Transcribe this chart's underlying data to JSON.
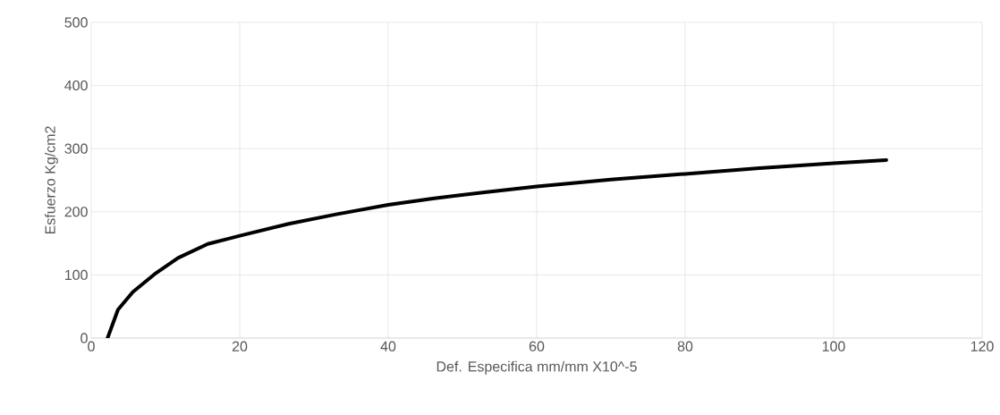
{
  "chart_data": {
    "type": "line",
    "xlabel": "Def. Especifica mm/mm X10^-5",
    "ylabel": "Esfuerzo Kg/cm2",
    "x": [
      2.2,
      3.6,
      5.6,
      8.5,
      11.7,
      15.7,
      20,
      26.6,
      33,
      40,
      46,
      53,
      60,
      70,
      80,
      90,
      100,
      107.1
    ],
    "series": [
      {
        "color": "#000000",
        "values": [
          0,
          45,
          73,
          101,
          127,
          149,
          162,
          181,
          196,
          211,
          221,
          231,
          240,
          251,
          260,
          269,
          277,
          282
        ]
      }
    ],
    "xlim": [
      0,
      120
    ],
    "xticks": [
      0,
      20,
      40,
      60,
      80,
      100,
      120
    ],
    "ylim": [
      0,
      500
    ],
    "yticks": [
      0,
      100,
      200,
      300,
      400,
      500
    ],
    "grid": true,
    "marker": "none",
    "line_style": "solid"
  }
}
